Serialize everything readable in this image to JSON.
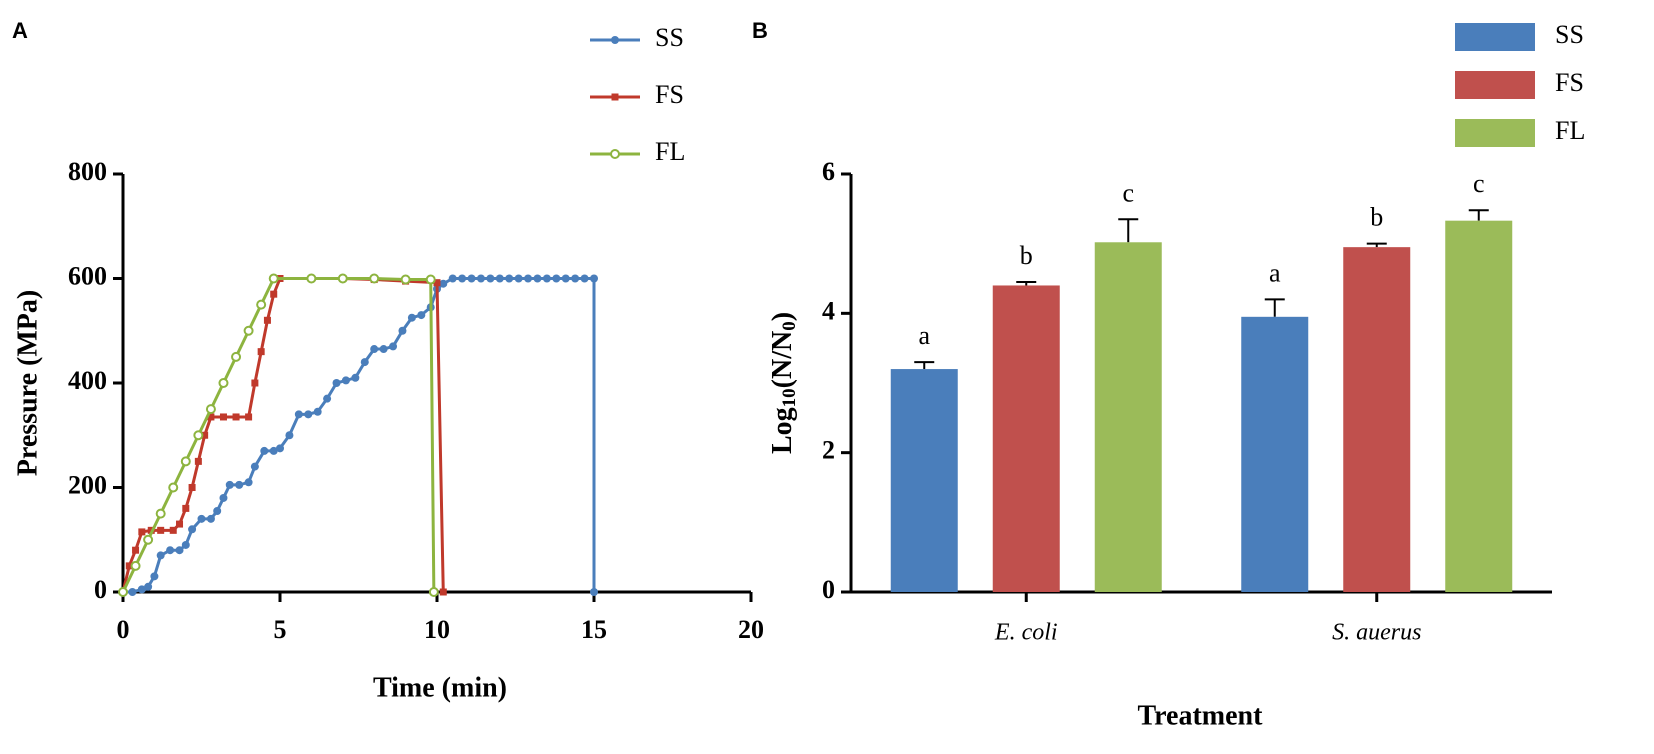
{
  "chart_data": [
    {
      "type": "line",
      "panel_label": "A",
      "xlabel": "Time (min)",
      "ylabel": "Pressure (MPa)",
      "xlim": [
        0,
        20
      ],
      "xticks": [
        0,
        5,
        10,
        15,
        20
      ],
      "ylim": [
        0,
        800
      ],
      "yticks": [
        0,
        200,
        400,
        600,
        800
      ],
      "series": [
        {
          "name": "SS",
          "color": "#4a7ebb",
          "marker": "circle",
          "x": [
            0,
            0.3,
            0.6,
            0.8,
            1.0,
            1.2,
            1.5,
            1.8,
            2.0,
            2.2,
            2.5,
            2.8,
            3.0,
            3.2,
            3.4,
            3.7,
            4.0,
            4.2,
            4.5,
            4.8,
            5.0,
            5.3,
            5.6,
            5.9,
            6.2,
            6.5,
            6.8,
            7.1,
            7.4,
            7.7,
            8.0,
            8.3,
            8.6,
            8.9,
            9.2,
            9.5,
            9.8,
            10.0,
            10.2,
            10.5,
            10.8,
            11.1,
            11.4,
            11.7,
            12.0,
            12.3,
            12.6,
            12.9,
            13.2,
            13.5,
            13.8,
            14.1,
            14.4,
            14.7,
            15.0,
            15.0
          ],
          "values": [
            0,
            0,
            5,
            10,
            30,
            70,
            80,
            80,
            90,
            120,
            140,
            140,
            155,
            180,
            205,
            205,
            210,
            240,
            270,
            270,
            275,
            300,
            340,
            340,
            345,
            370,
            400,
            405,
            410,
            440,
            465,
            465,
            470,
            500,
            525,
            530,
            545,
            580,
            590,
            600,
            600,
            600,
            600,
            600,
            600,
            600,
            600,
            600,
            600,
            600,
            600,
            600,
            600,
            600,
            600,
            0
          ]
        },
        {
          "name": "FS",
          "color": "#c0392b",
          "marker": "square",
          "x": [
            0,
            0.2,
            0.4,
            0.6,
            0.9,
            1.2,
            1.6,
            1.8,
            2.0,
            2.2,
            2.4,
            2.6,
            2.8,
            3.2,
            3.6,
            4.0,
            4.2,
            4.4,
            4.6,
            4.8,
            5.0,
            6.0,
            7.0,
            8.0,
            9.0,
            10.0,
            10.2
          ],
          "values": [
            0,
            50,
            80,
            115,
            118,
            118,
            118,
            130,
            160,
            200,
            250,
            300,
            335,
            335,
            335,
            335,
            400,
            460,
            520,
            570,
            600,
            600,
            600,
            598,
            595,
            592,
            0
          ]
        },
        {
          "name": "FL",
          "color": "#8db43f",
          "marker": "open-circle",
          "x": [
            0,
            0.4,
            0.8,
            1.2,
            1.6,
            2.0,
            2.4,
            2.8,
            3.2,
            3.6,
            4.0,
            4.4,
            4.8,
            6.0,
            7.0,
            8.0,
            9.0,
            9.8,
            9.9
          ],
          "values": [
            0,
            50,
            100,
            150,
            200,
            250,
            300,
            350,
            400,
            450,
            500,
            550,
            600,
            600,
            600,
            600,
            598,
            598,
            0
          ]
        }
      ]
    },
    {
      "type": "bar",
      "panel_label": "B",
      "xlabel": "Treatment",
      "ylabel_parts": [
        {
          "text": "Log"
        },
        {
          "text": "10",
          "sub": true
        },
        {
          "text": "(N/N"
        },
        {
          "text": "0",
          "sub": true
        },
        {
          "text": ")"
        }
      ],
      "categories": [
        "E. coli",
        "S. auerus"
      ],
      "ylim": [
        0,
        6
      ],
      "yticks": [
        0,
        2,
        4,
        6
      ],
      "series": [
        {
          "name": "SS",
          "color": "#4a7ebb",
          "values": [
            3.2,
            3.95
          ],
          "errors": [
            0.1,
            0.25
          ],
          "letters": [
            "a",
            "a"
          ]
        },
        {
          "name": "FS",
          "color": "#c0504d",
          "values": [
            4.4,
            4.95
          ],
          "errors": [
            0.05,
            0.05
          ],
          "letters": [
            "b",
            "b"
          ]
        },
        {
          "name": "FL",
          "color": "#9bbb59",
          "values": [
            5.02,
            5.33
          ],
          "errors": [
            0.33,
            0.15
          ],
          "letters": [
            "c",
            "c"
          ]
        }
      ]
    }
  ]
}
